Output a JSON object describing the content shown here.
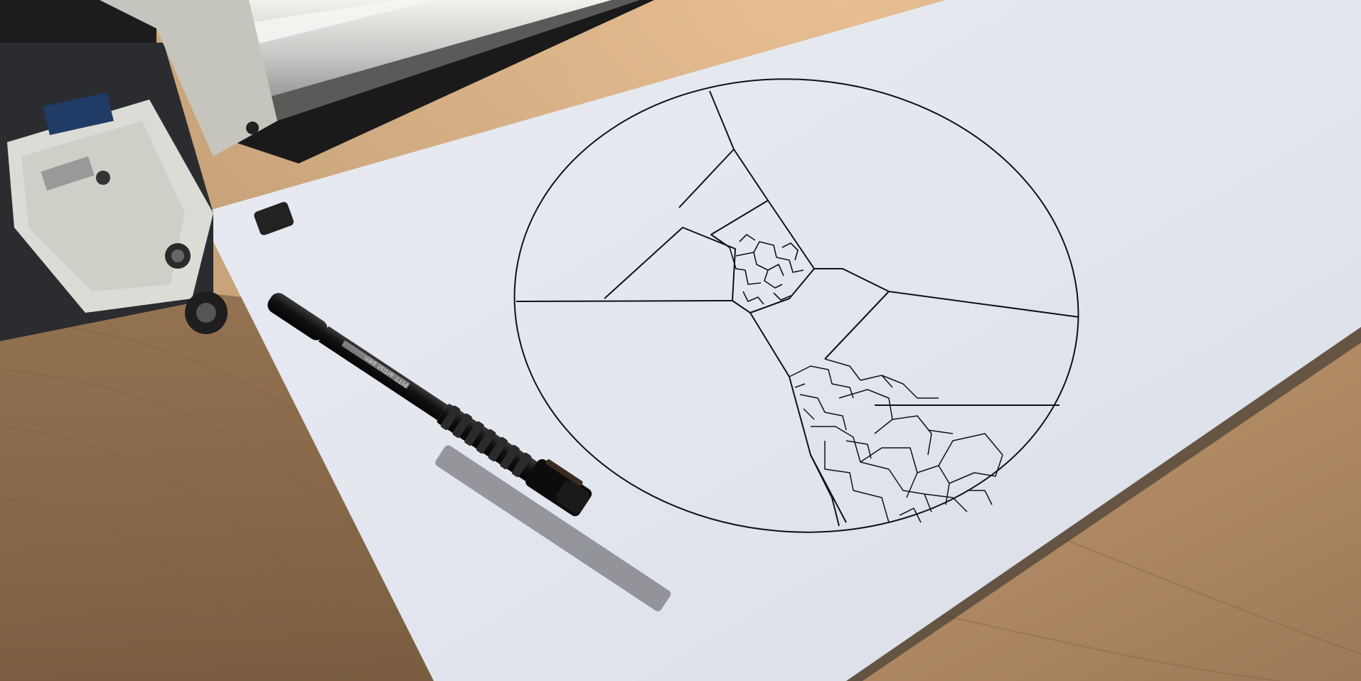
{
  "scene": {
    "description_tag": "pen-plotter-drawing-photo",
    "pen_label_text": "PITT artist pen",
    "colors": {
      "wood": "#c8a57e",
      "wood_dark": "#8a6a48",
      "paper": "#e6e9f0",
      "ink": "#111111",
      "plotter_metal": "#d9d9d4",
      "pen_body": "#151515"
    }
  }
}
